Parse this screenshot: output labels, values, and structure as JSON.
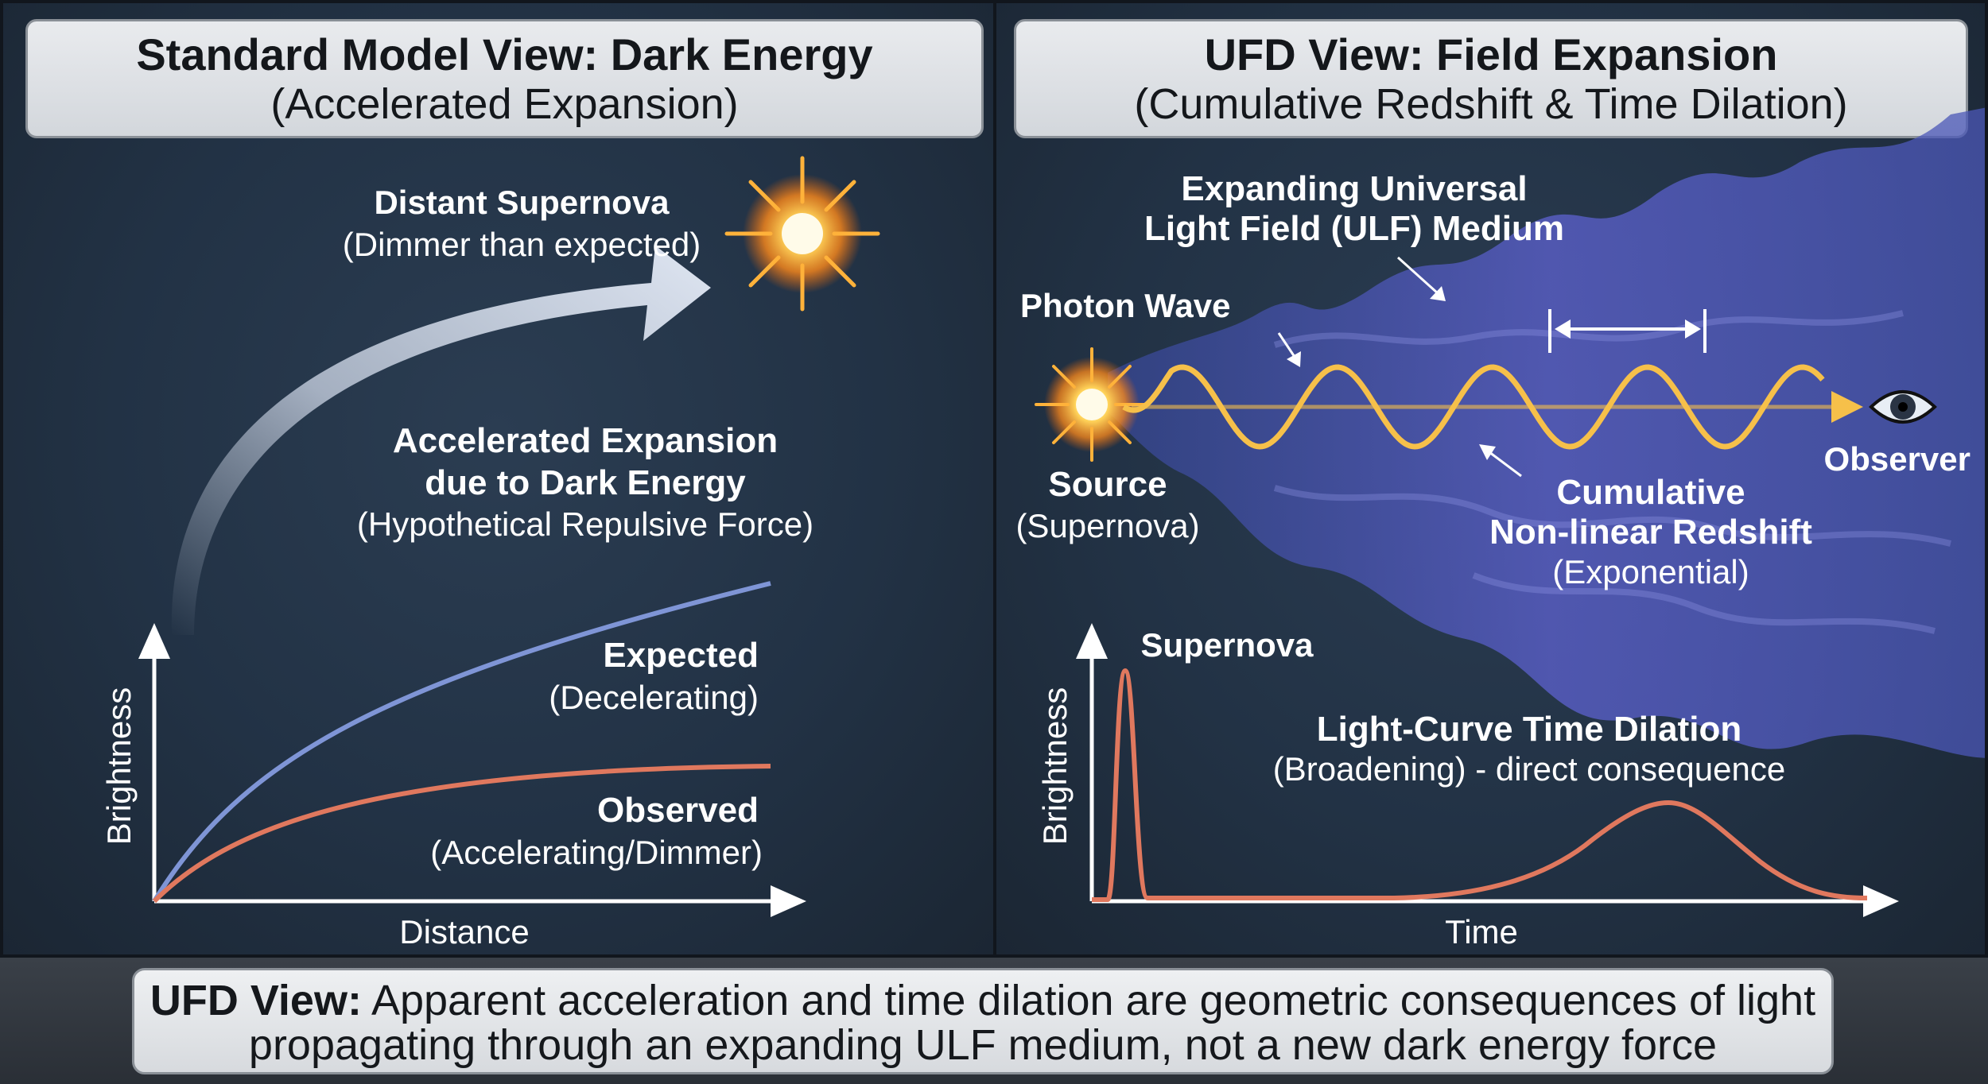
{
  "left": {
    "title": "Standard Model View: Dark Energy",
    "subtitle": "(Accelerated Expansion)",
    "supernova_title": "Distant Supernova",
    "supernova_sub": "(Dimmer than expected)",
    "accel_line1": "Accelerated Expansion",
    "accel_line2": "due to Dark Energy",
    "accel_line3": "(Hypothetical Repulsive Force)",
    "expected_title": "Expected",
    "expected_sub": "(Decelerating)",
    "observed_title": "Observed",
    "observed_sub": "(Accelerating/Dimmer)",
    "y_axis": "Brightness",
    "x_axis": "Distance"
  },
  "right": {
    "title": "UFD View: Field Expansion",
    "subtitle": "(Cumulative Redshift & Time Dilation)",
    "medium_line1": "Expanding Universal",
    "medium_line2": "Light Field (ULF) Medium",
    "photon_wave": "Photon Wave",
    "source_title": "Source",
    "source_sub": "(Supernova)",
    "observer": "Observer",
    "redshift_line1": "Cumulative",
    "redshift_line2": "Non-linear Redshift",
    "redshift_line3": "(Exponential)",
    "peak_label": "Supernova",
    "dilation_title": "Light-Curve Time Dilation",
    "dilation_sub": "(Broadening) - direct consequence",
    "y_axis": "Brightness",
    "x_axis": "Time"
  },
  "footer": {
    "lead": "UFD View:",
    "text_line1": " Apparent acceleration and time dilation are geometric consequences of light",
    "text_line2": "propagating through an expanding ULF medium, not a new dark energy force"
  },
  "colors": {
    "expected_curve": "#7f95d6",
    "observed_curve": "#e0785e",
    "wave": "#f6c04a",
    "medium": "#5a5fc8"
  }
}
